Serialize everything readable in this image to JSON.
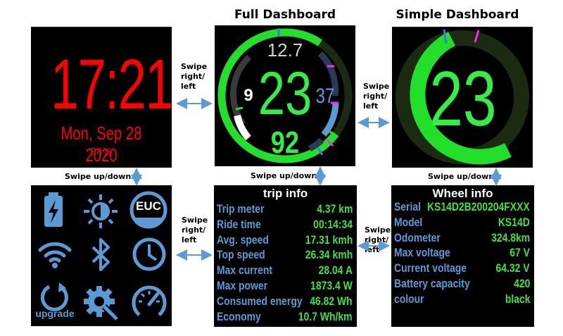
{
  "captions": {
    "full": "Full Dashboard",
    "simple": "Simple Dashboard"
  },
  "watchface": {
    "time": "17:21",
    "date": "Mon, Sep 28 2020",
    "battery": "84%"
  },
  "full_dashboard": {
    "top": "12.7",
    "left": "9",
    "center": "23",
    "right": "37",
    "bottom": "92"
  },
  "simple_dashboard": {
    "speed": "23"
  },
  "swipes": {
    "rl_1": [
      "Swipe",
      "right/",
      "left"
    ],
    "rl_2": [
      "Swipe",
      "right/",
      "left"
    ],
    "rl_3": [
      "Swipe",
      "right/",
      "left"
    ],
    "rl_4": [
      "Swipe",
      "right/",
      "left"
    ],
    "ud_1": "Swipe up/down",
    "ud_2": "Swipe up/down",
    "ud_3": "Swipe up/down"
  },
  "menu": {
    "icons": [
      "battery-icon",
      "brightness-icon",
      "euc-icon",
      "wifi-icon",
      "bluetooth-icon",
      "clock-icon",
      "upgrade-icon",
      "settings-icon",
      "speedometer-icon"
    ],
    "euc_label": "EUC",
    "upgrade_label": "upgrade"
  },
  "trip_info": {
    "title": "trip info",
    "rows": [
      {
        "label": "Trip meter",
        "value": "4.37 km"
      },
      {
        "label": "Ride time",
        "value": "00:14:34"
      },
      {
        "label": "Avg. speed",
        "value": "17.31 kmh"
      },
      {
        "label": "Top speed",
        "value": "26.34 kmh"
      },
      {
        "label": "Max current",
        "value": "28.04 A"
      },
      {
        "label": "Max power",
        "value": "1873.4 W"
      },
      {
        "label": "Consumed energy",
        "value": "46.82 Wh"
      },
      {
        "label": "Economy",
        "value": "10.7 Wh/km"
      }
    ]
  },
  "wheel_info": {
    "title": "Wheel info",
    "rows": [
      {
        "label": "Serial",
        "value": "KS14D2B200204FXXX"
      },
      {
        "label": "Model",
        "value": "KS14D"
      },
      {
        "label": "Odometer",
        "value": "324.8km"
      },
      {
        "label": "Max voltage",
        "value": "67 V"
      },
      {
        "label": "Current voltage",
        "value": "64.32 V"
      },
      {
        "label": "Battery capacity",
        "value": "420"
      },
      {
        "label": "colour",
        "value": "black"
      }
    ]
  },
  "colors": {
    "red": "#ff0000",
    "green": "#33ee44",
    "blue": "#5b9bd5",
    "magenta": "#ff22ff",
    "background": "#000000"
  }
}
